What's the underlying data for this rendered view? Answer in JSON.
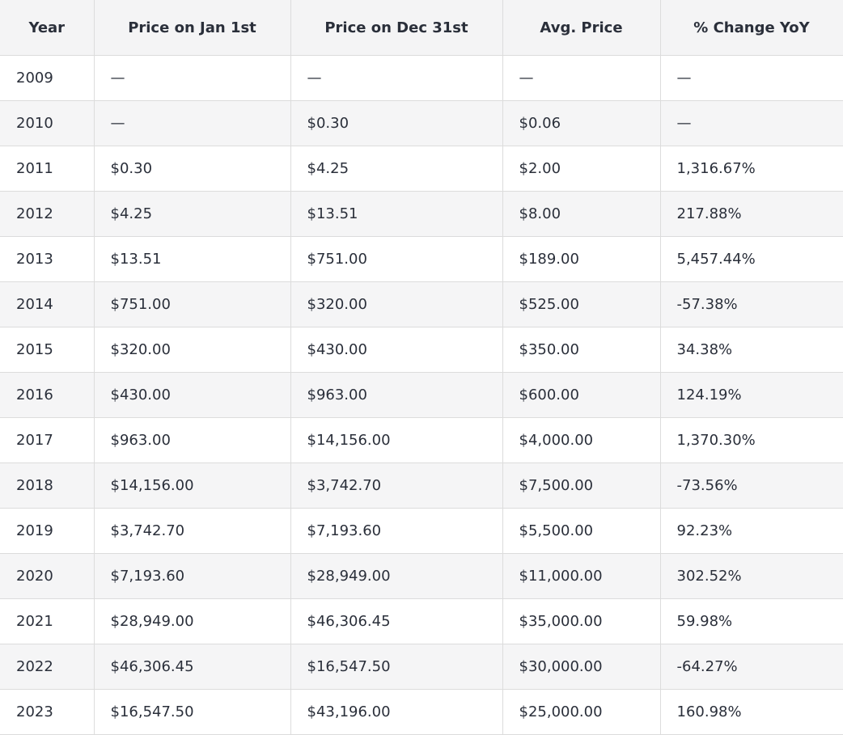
{
  "table": {
    "headers": [
      "Year",
      "Price on Jan 1st",
      "Price on Dec 31st",
      "Avg. Price",
      "% Change YoY"
    ],
    "rows": [
      [
        "2009",
        "—",
        "—",
        "—",
        "—"
      ],
      [
        "2010",
        "—",
        "$0.30",
        "$0.06",
        "—"
      ],
      [
        "2011",
        "$0.30",
        "$4.25",
        "$2.00",
        "1,316.67%"
      ],
      [
        "2012",
        "$4.25",
        "$13.51",
        "$8.00",
        "217.88%"
      ],
      [
        "2013",
        "$13.51",
        "$751.00",
        "$189.00",
        "5,457.44%"
      ],
      [
        "2014",
        "$751.00",
        "$320.00",
        "$525.00",
        "-57.38%"
      ],
      [
        "2015",
        "$320.00",
        "$430.00",
        "$350.00",
        "34.38%"
      ],
      [
        "2016",
        "$430.00",
        "$963.00",
        "$600.00",
        "124.19%"
      ],
      [
        "2017",
        "$963.00",
        "$14,156.00",
        "$4,000.00",
        "1,370.30%"
      ],
      [
        "2018",
        "$14,156.00",
        "$3,742.70",
        "$7,500.00",
        "-73.56%"
      ],
      [
        "2019",
        "$3,742.70",
        "$7,193.60",
        "$5,500.00",
        "92.23%"
      ],
      [
        "2020",
        "$7,193.60",
        "$28,949.00",
        "$11,000.00",
        "302.52%"
      ],
      [
        "2021",
        "$28,949.00",
        "$46,306.45",
        "$35,000.00",
        "59.98%"
      ],
      [
        "2022",
        "$46,306.45",
        "$16,547.50",
        "$30,000.00",
        "-64.27%"
      ],
      [
        "2023",
        "$16,547.50",
        "$43,196.00",
        "$25,000.00",
        "160.98%"
      ]
    ]
  }
}
